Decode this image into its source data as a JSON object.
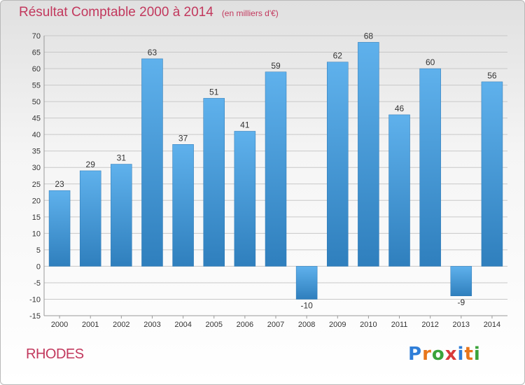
{
  "title": {
    "main": "Résultat Comptable 2000 à 2014",
    "unit": "(en milliers d'€)"
  },
  "commune": "RHODES",
  "brand": {
    "text": "Proxiti",
    "letter_colors": [
      "#2f7ed8",
      "#e8761c",
      "#3aa33a",
      "#d83a3a",
      "#2f7ed8",
      "#e8761c",
      "#3aa33a"
    ]
  },
  "colors": {
    "title": "#c2385d",
    "bar_light": "#5fb1ec",
    "bar_dark": "#2f7fbd",
    "grid": "#c8c8c8"
  },
  "chart_data": {
    "type": "bar",
    "categories": [
      "2000",
      "2001",
      "2002",
      "2003",
      "2004",
      "2005",
      "2006",
      "2007",
      "2008",
      "2009",
      "2010",
      "2011",
      "2012",
      "2013",
      "2014"
    ],
    "values": [
      23,
      29,
      31,
      63,
      37,
      51,
      41,
      59,
      -10,
      62,
      68,
      46,
      60,
      -9,
      56
    ],
    "ylim": [
      -15,
      70
    ],
    "yticks": [
      -15,
      -10,
      -5,
      0,
      5,
      10,
      15,
      20,
      25,
      30,
      35,
      40,
      45,
      50,
      55,
      60,
      65,
      70
    ],
    "grid": "horizontal",
    "title": "Résultat Comptable 2000 à 2014",
    "xlabel": "",
    "ylabel": ""
  }
}
